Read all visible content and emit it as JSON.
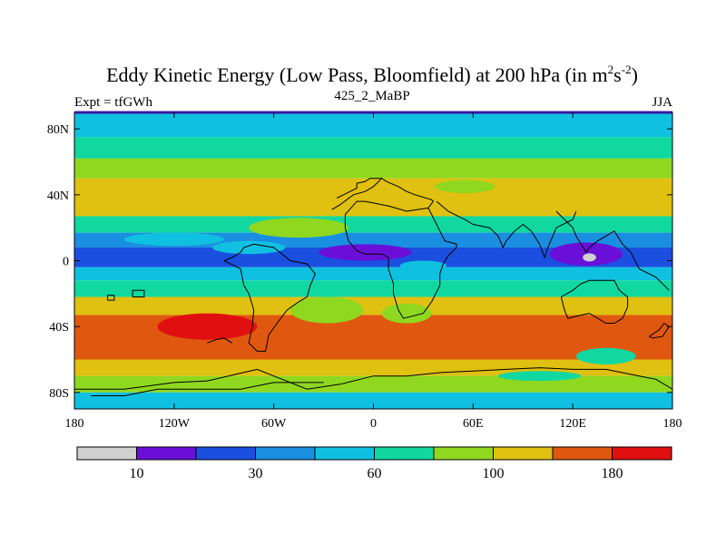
{
  "chart_data": {
    "type": "heatmap",
    "title": "Eddy Kinetic Energy (Low Pass, Bloomfield) at 200 hPa (in m²s⁻²)",
    "title_parts": {
      "main": "Eddy Kinetic Energy (Low Pass, Bloomfield) at 200 hPa (in m",
      "sup1": "2",
      "mid": "s",
      "sup2": "-2",
      "end": ")"
    },
    "left_label": "Expt = tfGWh",
    "center_label": "425_2_MaBP",
    "right_label": "JJA",
    "x_ticks": [
      {
        "value": -180,
        "label": "180"
      },
      {
        "value": -120,
        "label": "120W"
      },
      {
        "value": -60,
        "label": "60W"
      },
      {
        "value": 0,
        "label": "0"
      },
      {
        "value": 60,
        "label": "60E"
      },
      {
        "value": 120,
        "label": "120E"
      },
      {
        "value": 180,
        "label": "180"
      }
    ],
    "y_ticks": [
      {
        "value": 80,
        "label": "80N"
      },
      {
        "value": 40,
        "label": "40N"
      },
      {
        "value": 0,
        "label": "0"
      },
      {
        "value": -40,
        "label": "40S"
      },
      {
        "value": -80,
        "label": "80S"
      }
    ],
    "xlim": [
      -180,
      180
    ],
    "ylim": [
      -90,
      90
    ],
    "levels": [
      10,
      20,
      30,
      45,
      60,
      80,
      100,
      140,
      180
    ],
    "level_labels": [
      {
        "index": 1,
        "label": "10"
      },
      {
        "index": 3,
        "label": "30"
      },
      {
        "index": 5,
        "label": "60"
      },
      {
        "index": 7,
        "label": "100"
      },
      {
        "index": 9,
        "label": "180"
      }
    ],
    "colors": [
      "#d0d0d0",
      "#6a0fd8",
      "#1a4fe0",
      "#1a8ee0",
      "#10c0e0",
      "#10d8a0",
      "#90d820",
      "#e0c010",
      "#e05810",
      "#e01010"
    ],
    "bands": [
      {
        "lat_max": 90,
        "lat_min": 75,
        "value": 55
      },
      {
        "lat_max": 75,
        "lat_min": 62,
        "value": 70
      },
      {
        "lat_max": 62,
        "lat_min": 50,
        "value": 90
      },
      {
        "lat_max": 50,
        "lat_min": 27,
        "value": 115
      },
      {
        "lat_max": 27,
        "lat_min": 17,
        "value": 70
      },
      {
        "lat_max": 17,
        "lat_min": 8,
        "value": 40
      },
      {
        "lat_max": 8,
        "lat_min": -4,
        "value": 25
      },
      {
        "lat_max": -4,
        "lat_min": -12,
        "value": 55
      },
      {
        "lat_max": -12,
        "lat_min": -22,
        "value": 75
      },
      {
        "lat_max": -22,
        "lat_min": -33,
        "value": 120
      },
      {
        "lat_max": -33,
        "lat_min": -60,
        "value": 150
      },
      {
        "lat_max": -60,
        "lat_min": -70,
        "value": 115
      },
      {
        "lat_max": -70,
        "lat_min": -80,
        "value": 90
      },
      {
        "lat_max": -80,
        "lat_min": -90,
        "value": 50
      }
    ],
    "blobs": [
      {
        "lon": -135,
        "lat": 38,
        "rlon": 24,
        "rlat": 5,
        "value": 110
      },
      {
        "lon": -45,
        "lat": 20,
        "rlon": 30,
        "rlat": 6,
        "value": 85
      },
      {
        "lon": 55,
        "lat": 45,
        "rlon": 18,
        "rlat": 4,
        "value": 85
      },
      {
        "lon": -75,
        "lat": 8,
        "rlon": 22,
        "rlat": 4,
        "value": 50
      },
      {
        "lon": -120,
        "lat": 13,
        "rlon": 30,
        "rlat": 4,
        "value": 50
      },
      {
        "lon": -5,
        "lat": 5,
        "rlon": 28,
        "rlat": 5,
        "value": 18
      },
      {
        "lon": 128,
        "lat": 4,
        "rlon": 22,
        "rlat": 7,
        "value": 18
      },
      {
        "lon": 130,
        "lat": 2,
        "rlon": 4,
        "rlat": 2.5,
        "value": 5
      },
      {
        "lon": 30,
        "lat": -3,
        "rlon": 14,
        "rlat": 3,
        "value": 50
      },
      {
        "lon": -100,
        "lat": -40,
        "rlon": 30,
        "rlat": 8,
        "value": 200
      },
      {
        "lon": -28,
        "lat": -30,
        "rlon": 22,
        "rlat": 8,
        "value": 85
      },
      {
        "lon": 20,
        "lat": -32,
        "rlon": 15,
        "rlat": 6,
        "value": 85
      },
      {
        "lon": 100,
        "lat": -70,
        "rlon": 25,
        "rlat": 3,
        "value": 60
      },
      {
        "lon": 140,
        "lat": -58,
        "rlon": 18,
        "rlat": 5,
        "value": 60
      }
    ],
    "coastlines": [
      [
        [
          -22,
          38
        ],
        [
          -18,
          40
        ],
        [
          -10,
          44
        ],
        [
          -10,
          47
        ],
        [
          -5,
          48
        ],
        [
          -2,
          50
        ],
        [
          5,
          50
        ],
        [
          8,
          48
        ],
        [
          15,
          45
        ],
        [
          20,
          42
        ],
        [
          25,
          40
        ],
        [
          35,
          37
        ],
        [
          36,
          36
        ],
        [
          33,
          32
        ],
        [
          20,
          30
        ],
        [
          10,
          33
        ],
        [
          0,
          35
        ],
        [
          -5,
          36
        ],
        [
          -10,
          36
        ],
        [
          -17,
          28
        ],
        [
          -17,
          20
        ],
        [
          -15,
          12
        ],
        [
          -10,
          6
        ],
        [
          -5,
          4
        ],
        [
          5,
          4
        ],
        [
          9,
          2
        ],
        [
          9,
          -5
        ],
        [
          12,
          -14
        ],
        [
          12,
          -20
        ],
        [
          15,
          -30
        ],
        [
          18,
          -35
        ],
        [
          22,
          -34
        ],
        [
          30,
          -32
        ],
        [
          35,
          -25
        ],
        [
          40,
          -15
        ],
        [
          40,
          -8
        ],
        [
          42,
          -2
        ],
        [
          45,
          3
        ],
        [
          50,
          8
        ],
        [
          50,
          10
        ],
        [
          43,
          12
        ],
        [
          40,
          18
        ],
        [
          38,
          22
        ],
        [
          35,
          28
        ],
        [
          33,
          32
        ]
      ],
      [
        [
          -25,
          31
        ],
        [
          -20,
          34
        ],
        [
          -12,
          40
        ],
        [
          -5,
          42
        ],
        [
          0,
          45
        ],
        [
          5,
          50
        ]
      ],
      [
        [
          38,
          36
        ],
        [
          45,
          30
        ],
        [
          55,
          25
        ],
        [
          60,
          22
        ],
        [
          70,
          20
        ],
        [
          75,
          15
        ],
        [
          78,
          8
        ],
        [
          80,
          12
        ],
        [
          85,
          18
        ],
        [
          90,
          22
        ],
        [
          95,
          18
        ],
        [
          100,
          10
        ],
        [
          103,
          2
        ],
        [
          105,
          8
        ],
        [
          108,
          15
        ],
        [
          110,
          20
        ],
        [
          120,
          25
        ],
        [
          122,
          30
        ]
      ],
      [
        [
          110,
          30
        ],
        [
          115,
          25
        ],
        [
          120,
          20
        ],
        [
          122,
          15
        ],
        [
          125,
          10
        ],
        [
          128,
          5
        ],
        [
          130,
          8
        ],
        [
          135,
          12
        ],
        [
          140,
          15
        ],
        [
          145,
          18
        ],
        [
          150,
          10
        ],
        [
          155,
          5
        ],
        [
          160,
          -5
        ],
        [
          170,
          -10
        ],
        [
          178,
          -18
        ]
      ],
      [
        [
          -145,
          -22
        ],
        [
          -138,
          -22
        ],
        [
          -138,
          -18
        ],
        [
          -145,
          -18
        ],
        [
          -145,
          -22
        ]
      ],
      [
        [
          -160,
          -24
        ],
        [
          -156,
          -24
        ],
        [
          -156,
          -21
        ],
        [
          -160,
          -21
        ],
        [
          -160,
          -24
        ]
      ],
      [
        [
          -90,
          0
        ],
        [
          -80,
          -5
        ],
        [
          -78,
          -15
        ],
        [
          -75,
          -20
        ],
        [
          -72,
          -30
        ],
        [
          -73,
          -40
        ],
        [
          -75,
          -50
        ],
        [
          -70,
          -55
        ],
        [
          -65,
          -55
        ],
        [
          -63,
          -45
        ],
        [
          -58,
          -38
        ],
        [
          -52,
          -30
        ],
        [
          -45,
          -25
        ],
        [
          -40,
          -22
        ],
        [
          -38,
          -15
        ],
        [
          -35,
          -8
        ],
        [
          -40,
          -2
        ],
        [
          -50,
          0
        ],
        [
          -60,
          8
        ],
        [
          -72,
          10
        ],
        [
          -78,
          8
        ],
        [
          -80,
          5
        ],
        [
          -85,
          2
        ],
        [
          -90,
          0
        ]
      ],
      [
        [
          -100,
          -50
        ],
        [
          -95,
          -48
        ],
        [
          -90,
          -47
        ],
        [
          -85,
          -50
        ]
      ],
      [
        [
          113,
          -22
        ],
        [
          115,
          -30
        ],
        [
          117,
          -35
        ],
        [
          125,
          -33
        ],
        [
          130,
          -32
        ],
        [
          135,
          -35
        ],
        [
          140,
          -38
        ],
        [
          145,
          -38
        ],
        [
          150,
          -35
        ],
        [
          153,
          -28
        ],
        [
          153,
          -22
        ],
        [
          148,
          -18
        ],
        [
          145,
          -12
        ],
        [
          140,
          -12
        ],
        [
          135,
          -12
        ],
        [
          130,
          -12
        ],
        [
          125,
          -14
        ],
        [
          120,
          -18
        ],
        [
          113,
          -22
        ]
      ],
      [
        [
          166,
          -46
        ],
        [
          172,
          -42
        ],
        [
          175,
          -38
        ],
        [
          178,
          -40
        ],
        [
          174,
          -46
        ],
        [
          168,
          -47
        ],
        [
          166,
          -46
        ]
      ],
      [
        [
          -180,
          -78
        ],
        [
          -150,
          -78
        ],
        [
          -120,
          -74
        ],
        [
          -100,
          -73
        ],
        [
          -70,
          -66
        ],
        [
          -60,
          -70
        ],
        [
          -40,
          -78
        ],
        [
          -20,
          -75
        ],
        [
          0,
          -70
        ],
        [
          20,
          -70
        ],
        [
          40,
          -68
        ],
        [
          60,
          -67
        ],
        [
          80,
          -66
        ],
        [
          100,
          -65
        ],
        [
          120,
          -66
        ],
        [
          140,
          -66
        ],
        [
          160,
          -70
        ],
        [
          170,
          -72
        ],
        [
          180,
          -78
        ]
      ],
      [
        [
          -30,
          -74
        ],
        [
          -60,
          -74
        ],
        [
          -80,
          -78
        ],
        [
          -100,
          -78
        ],
        [
          -130,
          -78
        ],
        [
          -150,
          -82
        ],
        [
          -170,
          -82
        ]
      ]
    ]
  }
}
